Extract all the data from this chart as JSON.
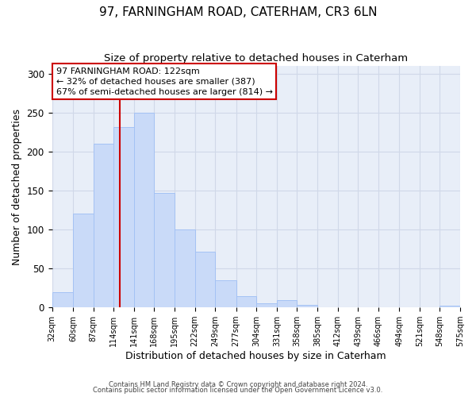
{
  "title": "97, FARNINGHAM ROAD, CATERHAM, CR3 6LN",
  "subtitle": "Size of property relative to detached houses in Caterham",
  "xlabel": "Distribution of detached houses by size in Caterham",
  "ylabel": "Number of detached properties",
  "bin_edges": [
    32,
    60,
    87,
    114,
    141,
    168,
    195,
    222,
    249,
    277,
    304,
    331,
    358,
    385,
    412,
    439,
    466,
    494,
    521,
    548,
    575
  ],
  "bin_counts": [
    20,
    120,
    210,
    232,
    250,
    147,
    100,
    72,
    35,
    15,
    5,
    9,
    3,
    0,
    0,
    0,
    0,
    0,
    0,
    2
  ],
  "bar_facecolor": "#c9daf8",
  "bar_edgecolor": "#a4c2f4",
  "grid_color": "#d0d8e8",
  "vline_x": 122,
  "vline_color": "#cc0000",
  "annotation_line1": "97 FARNINGHAM ROAD: 122sqm",
  "annotation_line2": "← 32% of detached houses are smaller (387)",
  "annotation_line3": "67% of semi-detached houses are larger (814) →",
  "ylim": [
    0,
    310
  ],
  "yticks": [
    0,
    50,
    100,
    150,
    200,
    250,
    300
  ],
  "background_color": "#e8eef8",
  "footer_line1": "Contains HM Land Registry data © Crown copyright and database right 2024.",
  "footer_line2": "Contains public sector information licensed under the Open Government Licence v3.0.",
  "title_fontsize": 11,
  "subtitle_fontsize": 9.5,
  "xlabel_fontsize": 9,
  "ylabel_fontsize": 9,
  "tick_labels": [
    "32sqm",
    "60sqm",
    "87sqm",
    "114sqm",
    "141sqm",
    "168sqm",
    "195sqm",
    "222sqm",
    "249sqm",
    "277sqm",
    "304sqm",
    "331sqm",
    "358sqm",
    "385sqm",
    "412sqm",
    "439sqm",
    "466sqm",
    "494sqm",
    "521sqm",
    "548sqm",
    "575sqm"
  ]
}
